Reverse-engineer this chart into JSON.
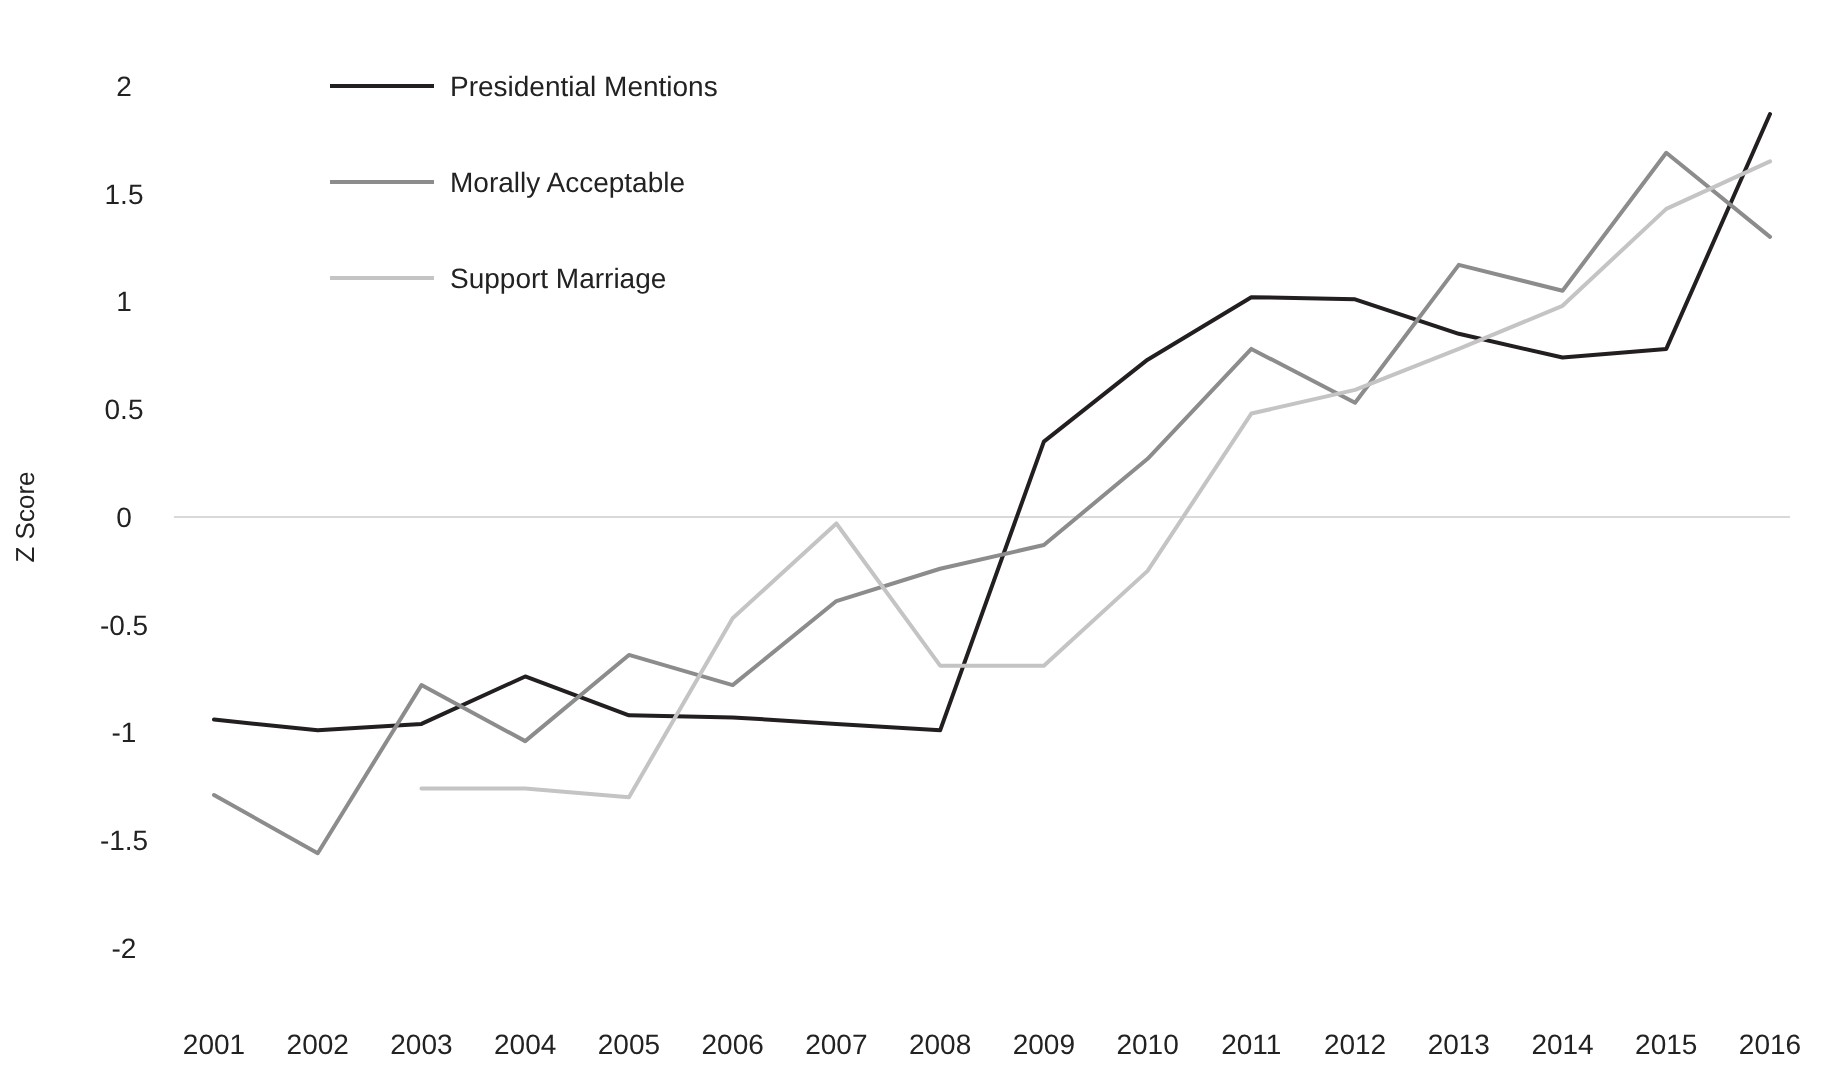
{
  "chart_data": {
    "type": "line",
    "ylabel": "Z Score",
    "categories": [
      "2001",
      "2002",
      "2003",
      "2004",
      "2005",
      "2006",
      "2007",
      "2008",
      "2009",
      "2010",
      "2011",
      "2012",
      "2013",
      "2014",
      "2015",
      "2016"
    ],
    "series": [
      {
        "name": "Presidential Mentions",
        "color": "#231f20",
        "values": [
          -0.94,
          -0.99,
          -0.96,
          -0.74,
          -0.92,
          -0.93,
          -0.96,
          -0.99,
          0.35,
          0.73,
          1.02,
          1.01,
          0.85,
          0.74,
          0.78,
          1.87
        ]
      },
      {
        "name": "Morally Acceptable",
        "color": "#8c8c8c",
        "values": [
          -1.29,
          -1.56,
          -0.78,
          -1.04,
          -0.64,
          -0.78,
          -0.39,
          -0.24,
          -0.13,
          0.27,
          0.78,
          0.53,
          1.17,
          1.05,
          1.69,
          1.3
        ]
      },
      {
        "name": "Support Marriage",
        "color": "#c4c4c4",
        "values": [
          null,
          null,
          -1.26,
          -1.26,
          -1.3,
          -0.47,
          -0.03,
          -0.69,
          -0.69,
          -0.25,
          0.48,
          0.59,
          0.78,
          0.98,
          1.43,
          1.65
        ]
      }
    ],
    "ylim": [
      -2,
      2
    ],
    "yticks": [
      -2,
      -1.5,
      -1,
      -0.5,
      0,
      0.5,
      1,
      1.5,
      2
    ],
    "ref_lines": [
      {
        "axis": "y",
        "value": 0,
        "color": "#d9d9d9"
      }
    ],
    "grid": false,
    "legend": "top left",
    "marker": "none",
    "line_style": "solid"
  }
}
